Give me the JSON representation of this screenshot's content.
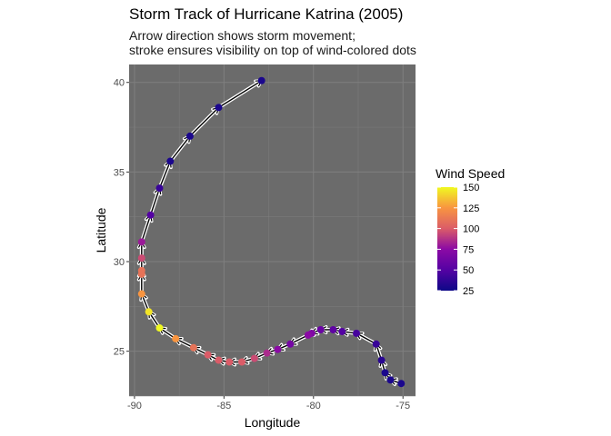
{
  "chart_data": {
    "type": "scatter",
    "title": "Storm Track of Hurricane Katrina (2005)",
    "subtitle_lines": [
      "Arrow direction shows storm movement;",
      "stroke ensures visibility on top of wind-colored dots"
    ],
    "xlabel": "Longitude",
    "ylabel": "Latitude",
    "xlim": [
      -90.3,
      -74.3
    ],
    "ylim": [
      22.5,
      41.0
    ],
    "xticks": [
      -90,
      -85,
      -80,
      -75
    ],
    "xtick_labels": [
      "-90",
      "-85",
      "-80",
      "-75"
    ],
    "yticks": [
      25,
      30,
      35,
      40
    ],
    "ytick_labels": [
      "25",
      "30",
      "35",
      "40"
    ],
    "grid": true,
    "legend": {
      "title": "Wind Speed",
      "position": "right",
      "min": 25,
      "max": 150,
      "breaks": [
        25,
        50,
        75,
        100,
        125,
        150
      ],
      "break_labels": [
        "25",
        "50",
        "75",
        "100",
        "125",
        "150"
      ]
    },
    "colors": {
      "panel": "#6b6b6b",
      "grid": "#7f7f7f",
      "track_outline": "#ffffff",
      "track_line": "#000000"
    },
    "points": [
      {
        "lon": -75.1,
        "lat": 23.2,
        "wind": 30
      },
      {
        "lon": -75.7,
        "lat": 23.4,
        "wind": 30
      },
      {
        "lon": -76.0,
        "lat": 23.8,
        "wind": 30
      },
      {
        "lon": -76.2,
        "lat": 24.5,
        "wind": 35
      },
      {
        "lon": -76.5,
        "lat": 25.4,
        "wind": 40
      },
      {
        "lon": -77.6,
        "lat": 26.0,
        "wind": 45
      },
      {
        "lon": -78.4,
        "lat": 26.1,
        "wind": 50
      },
      {
        "lon": -78.9,
        "lat": 26.2,
        "wind": 55
      },
      {
        "lon": -79.6,
        "lat": 26.2,
        "wind": 60
      },
      {
        "lon": -80.1,
        "lat": 26.0,
        "wind": 70
      },
      {
        "lon": -80.3,
        "lat": 25.9,
        "wind": 75
      },
      {
        "lon": -81.3,
        "lat": 25.4,
        "wind": 65
      },
      {
        "lon": -82.0,
        "lat": 25.1,
        "wind": 75
      },
      {
        "lon": -82.6,
        "lat": 24.9,
        "wind": 85
      },
      {
        "lon": -83.3,
        "lat": 24.6,
        "wind": 95
      },
      {
        "lon": -84.0,
        "lat": 24.4,
        "wind": 100
      },
      {
        "lon": -84.7,
        "lat": 24.4,
        "wind": 100
      },
      {
        "lon": -85.3,
        "lat": 24.5,
        "wind": 100
      },
      {
        "lon": -85.9,
        "lat": 24.8,
        "wind": 100
      },
      {
        "lon": -86.7,
        "lat": 25.2,
        "wind": 110
      },
      {
        "lon": -87.7,
        "lat": 25.7,
        "wind": 125
      },
      {
        "lon": -88.6,
        "lat": 26.3,
        "wind": 150
      },
      {
        "lon": -89.2,
        "lat": 27.2,
        "wind": 145
      },
      {
        "lon": -89.6,
        "lat": 28.2,
        "wind": 125
      },
      {
        "lon": -89.6,
        "lat": 29.3,
        "wind": 110
      },
      {
        "lon": -89.6,
        "lat": 29.5,
        "wind": 110
      },
      {
        "lon": -89.6,
        "lat": 30.2,
        "wind": 95
      },
      {
        "lon": -89.6,
        "lat": 31.1,
        "wind": 80
      },
      {
        "lon": -89.1,
        "lat": 32.6,
        "wind": 50
      },
      {
        "lon": -88.6,
        "lat": 34.1,
        "wind": 40
      },
      {
        "lon": -88.0,
        "lat": 35.6,
        "wind": 30
      },
      {
        "lon": -86.9,
        "lat": 37.0,
        "wind": 30
      },
      {
        "lon": -85.3,
        "lat": 38.6,
        "wind": 30
      },
      {
        "lon": -82.9,
        "lat": 40.1,
        "wind": 30
      }
    ]
  }
}
